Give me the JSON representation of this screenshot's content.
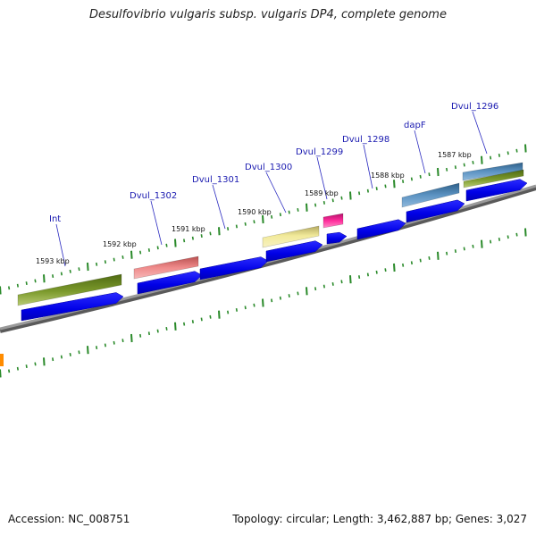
{
  "title": "Desulfovibrio vulgaris subsp. vulgaris DP4, complete genome",
  "accession": "Accession: NC_008751",
  "summary": "Topology: circular; Length: 3,462,887 bp; Genes: 3,027",
  "ruler": {
    "labels": [
      "1593 kbp",
      "1592 kbp",
      "1591 kbp",
      "1590 kbp",
      "1589 kbp",
      "1588 kbp",
      "1587 kbp"
    ]
  },
  "gene_labels": [
    "Int",
    "Dvul_1302",
    "Dvul_1301",
    "Dvul_1300",
    "Dvul_1299",
    "Dvul_1298",
    "dapF",
    "Dvul_1296"
  ],
  "colors": {
    "cds": "#0000ee",
    "backbone": "#808080",
    "tick": "#2a8a2a",
    "olive": "#6b8e23",
    "salmon": "#e57373",
    "khaki": "#ede58c",
    "magenta": "#e91e8c",
    "steelblue": "#4682b4",
    "orange": "#ff8c00",
    "label": "#1a1ab0"
  }
}
